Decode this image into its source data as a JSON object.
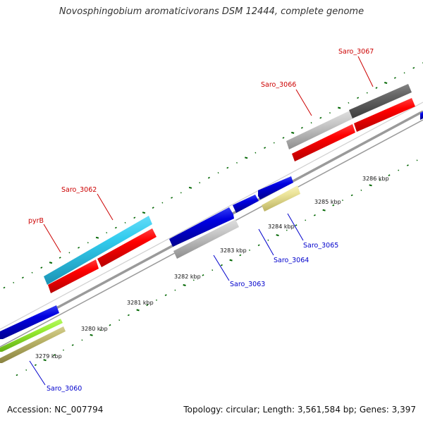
{
  "title": "Novosphingobium aromaticivorans DSM 12444, complete genome",
  "footer": {
    "accession": "Accession: NC_007794",
    "summary": "Topology: circular; Length: 3,561,584 bp; Genes: 3,397"
  },
  "ticks": [
    {
      "label": "3279 kbp"
    },
    {
      "label": "3280 kbp"
    },
    {
      "label": "3281 kbp"
    },
    {
      "label": "3282 kbp"
    },
    {
      "label": "3283 kbp"
    },
    {
      "label": "3284 kbp"
    },
    {
      "label": "3285 kbp"
    },
    {
      "label": "3286 kbp"
    }
  ],
  "gene_labels": [
    {
      "id": "saro-3067",
      "text": "Saro_3067",
      "color": "#cc0000"
    },
    {
      "id": "saro-3066",
      "text": "Saro_3066",
      "color": "#cc0000"
    },
    {
      "id": "saro-3062",
      "text": "Saro_3062",
      "color": "#cc0000"
    },
    {
      "id": "pyrb",
      "text": "pyrB",
      "color": "#cc0000"
    },
    {
      "id": "saro-3065",
      "text": "Saro_3065",
      "color": "#0000cc"
    },
    {
      "id": "saro-3064",
      "text": "Saro_3064",
      "color": "#0000cc"
    },
    {
      "id": "saro-3063",
      "text": "Saro_3063",
      "color": "#0000cc"
    },
    {
      "id": "saro-3060",
      "text": "Saro_3060",
      "color": "#0000cc"
    }
  ],
  "colors": {
    "red": "#ff0000",
    "blue": "#0000e0",
    "cyan": "#33ccee",
    "gray": "#c8c8c8",
    "darkgray": "#666666",
    "khaki": "#e8e08e",
    "lime": "#99ee33",
    "olive": "#bdb76b",
    "backbone": "#888888",
    "tick": "#006600"
  }
}
